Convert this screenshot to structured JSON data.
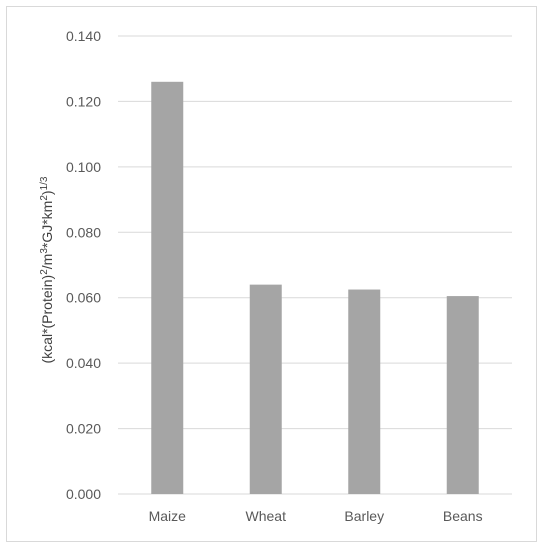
{
  "chart_data": {
    "type": "bar",
    "title": "",
    "xlabel": "",
    "ylabel": {
      "base": "(kcal*(Protein)",
      "sup1": "2",
      "mid1": "/m",
      "sup2": "3",
      "mid2": "*GJ*km",
      "sup3": "2",
      "mid3": ")",
      "sup4": "1/3"
    },
    "categories": [
      "Maize",
      "Wheat",
      "Barley",
      "Beans"
    ],
    "values": [
      0.126,
      0.064,
      0.0625,
      0.0605
    ],
    "ylim": [
      0,
      0.14
    ],
    "yticks": [
      "0.000",
      "0.020",
      "0.040",
      "0.060",
      "0.080",
      "0.100",
      "0.120",
      "0.140"
    ],
    "grid": true,
    "legend": "none",
    "bar_color": "#a5a5a5",
    "grid_color": "#d9d9d9"
  }
}
